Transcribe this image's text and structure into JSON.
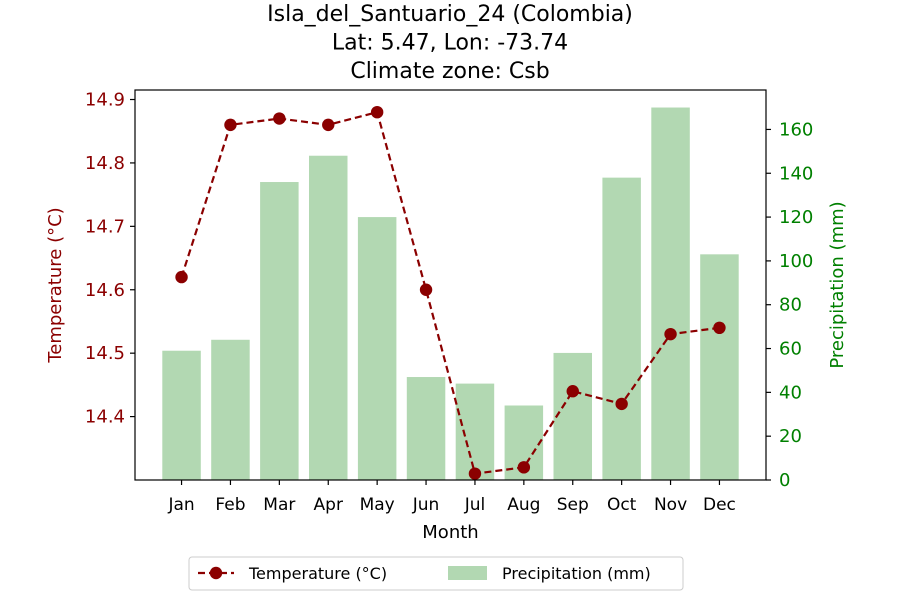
{
  "chart_data": {
    "type": "bar+line",
    "title_lines": [
      "Isla_del_Santuario_24 (Colombia)",
      "Lat: 5.47, Lon: -73.74",
      "Climate zone: Csb"
    ],
    "xlabel": "Month",
    "ylabel_left": "Temperature (°C)",
    "ylabel_right": "Precipitation (mm)",
    "categories": [
      "Jan",
      "Feb",
      "Mar",
      "Apr",
      "May",
      "Jun",
      "Jul",
      "Aug",
      "Sep",
      "Oct",
      "Nov",
      "Dec"
    ],
    "series": [
      {
        "name": "Temperature (°C)",
        "axis": "left",
        "kind": "line",
        "color": "#8b0000",
        "values": [
          14.62,
          14.86,
          14.87,
          14.86,
          14.88,
          14.6,
          14.31,
          14.32,
          14.44,
          14.42,
          14.53,
          14.54
        ]
      },
      {
        "name": "Precipitation (mm)",
        "axis": "right",
        "kind": "bar",
        "color": "#b2d8b2",
        "values": [
          59,
          64,
          136,
          148,
          120,
          47,
          44,
          34,
          58,
          138,
          170,
          103
        ]
      }
    ],
    "ylim_left": [
      14.3,
      14.915
    ],
    "ylim_right": [
      0,
      178
    ],
    "yticks_left": [
      "14.4",
      "14.5",
      "14.6",
      "14.7",
      "14.8",
      "14.9"
    ],
    "yticks_right": [
      "0",
      "20",
      "40",
      "60",
      "80",
      "100",
      "120",
      "140",
      "160"
    ],
    "left_axis_color": "#8b0000",
    "right_axis_color": "#008000",
    "legend_position": "bottom-center",
    "grid": false
  }
}
